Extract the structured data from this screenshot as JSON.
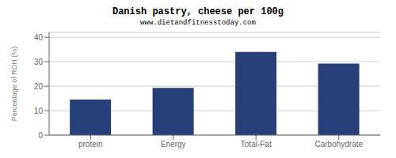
{
  "chart_data": {
    "type": "bar",
    "title": "Danish pastry, cheese per 100g",
    "subtitle": "www.dietandfitnesstoday.com",
    "categories": [
      "protein",
      "Energy",
      "Total-Fat",
      "Carbohydrate"
    ],
    "values": [
      14.5,
      19.3,
      34.0,
      29.2
    ],
    "color": "#27407a",
    "ylabel": "Percentage of RDH (%)",
    "ylim": [
      0,
      42
    ],
    "yticks": [
      0,
      10,
      20,
      30,
      40
    ],
    "grid": true
  }
}
